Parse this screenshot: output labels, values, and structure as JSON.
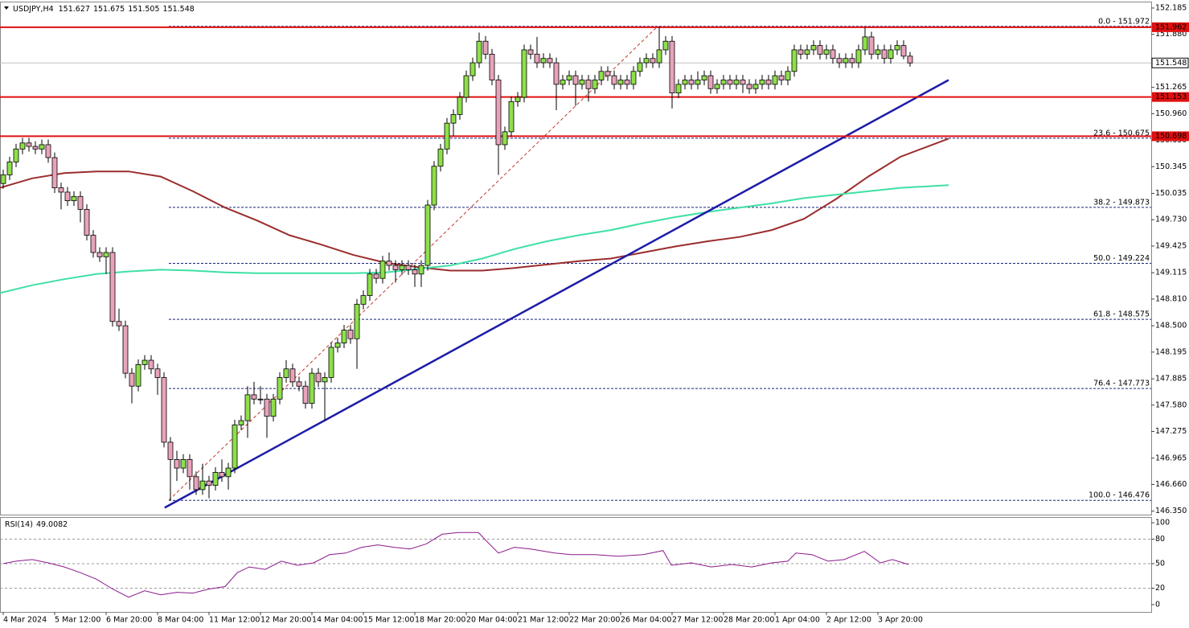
{
  "chart_data": {
    "type": "candlestick",
    "title": "USDJPY,H4",
    "ylim": [
      146.31,
      152.25
    ],
    "yticks": [
      152.185,
      {
        "value": 151.88,
        "label": "151.880"
      },
      151.265,
      {
        "value": 150.96,
        "label": "150.960"
      },
      {
        "value": 150.65,
        "label": "150.650"
      },
      150.345,
      150.035,
      {
        "value": 149.73,
        "label": "149.730"
      },
      149.425,
      149.115,
      {
        "value": 148.81,
        "label": "148.810"
      },
      {
        "value": 148.5,
        "label": "148.500"
      },
      148.195,
      147.885,
      {
        "value": 147.58,
        "label": "147.580"
      },
      147.275,
      146.965,
      {
        "value": 146.66,
        "label": "146.660"
      },
      {
        "value": 146.35,
        "label": "146.350"
      }
    ],
    "categories": [
      "4 Mar 2024",
      null,
      null,
      null,
      null,
      null,
      null,
      null,
      "5 Mar 12:00",
      null,
      null,
      null,
      null,
      null,
      null,
      null,
      "6 Mar 20:00",
      null,
      null,
      null,
      null,
      null,
      null,
      null,
      "8 Mar 04:00",
      null,
      null,
      null,
      null,
      null,
      null,
      null,
      "11 Mar 12:00",
      null,
      null,
      null,
      null,
      null,
      null,
      null,
      "12 Mar 20:00",
      null,
      null,
      null,
      null,
      null,
      null,
      null,
      "14 Mar 04:00",
      null,
      null,
      null,
      null,
      null,
      null,
      null,
      "15 Mar 12:00",
      null,
      null,
      null,
      null,
      null,
      null,
      null,
      "18 Mar 20:00",
      null,
      null,
      null,
      null,
      null,
      null,
      null,
      "20 Mar 04:00",
      null,
      null,
      null,
      null,
      null,
      null,
      null,
      "21 Mar 12:00",
      null,
      null,
      null,
      null,
      null,
      null,
      null,
      "22 Mar 20:00",
      null,
      null,
      null,
      null,
      null,
      null,
      null,
      "26 Mar 04:00",
      null,
      null,
      null,
      null,
      null,
      null,
      null,
      "27 Mar 12:00",
      null,
      null,
      null,
      null,
      null,
      null,
      null,
      "28 Mar 20:00",
      null,
      null,
      null,
      null,
      null,
      null,
      null,
      "1 Apr 04:00",
      null,
      null,
      null,
      null,
      null,
      null,
      null,
      "2 Apr 12:00",
      null,
      null,
      null,
      null,
      null,
      null,
      null,
      "3 Apr 20:00",
      null,
      null,
      null,
      null,
      null
    ],
    "up_color": "#8ee04a",
    "down_color": "#e8a3bb",
    "candles": [
      [
        150.15,
        150.31,
        150.09,
        150.25
      ],
      [
        150.25,
        150.46,
        150.19,
        150.4
      ],
      [
        150.4,
        150.61,
        150.34,
        150.55
      ],
      [
        150.55,
        150.68,
        150.49,
        150.62
      ],
      [
        150.62,
        150.68,
        150.52,
        150.58
      ],
      [
        150.58,
        150.64,
        150.49,
        150.55
      ],
      [
        150.55,
        150.66,
        150.49,
        150.6
      ],
      [
        150.6,
        150.66,
        150.39,
        150.45
      ],
      [
        150.45,
        150.51,
        150.04,
        150.1
      ],
      [
        150.1,
        150.16,
        149.85,
        150.05
      ],
      [
        150.05,
        150.11,
        149.89,
        149.95
      ],
      [
        149.95,
        150.06,
        149.89,
        150
      ],
      [
        150,
        150.06,
        149.7,
        149.85
      ],
      [
        149.85,
        149.91,
        149.49,
        149.55
      ],
      [
        149.55,
        149.61,
        149.29,
        149.35
      ],
      [
        149.35,
        149.41,
        149.24,
        149.3
      ],
      [
        149.3,
        149.41,
        149.1,
        149.35
      ],
      [
        149.35,
        149.41,
        148.49,
        148.55
      ],
      [
        148.55,
        148.7,
        148.44,
        148.5
      ],
      [
        148.5,
        148.56,
        147.89,
        147.95
      ],
      [
        147.95,
        148.01,
        147.6,
        147.8
      ],
      [
        147.8,
        148.11,
        147.74,
        148.05
      ],
      [
        148.05,
        148.16,
        147.99,
        148.1
      ],
      [
        148.1,
        148.16,
        147.94,
        148
      ],
      [
        148,
        148.06,
        147.7,
        147.9
      ],
      [
        147.9,
        147.96,
        147.09,
        147.15
      ],
      [
        147.15,
        147.21,
        146.476,
        146.95
      ],
      [
        146.95,
        147.05,
        146.7,
        146.85
      ],
      [
        146.85,
        147.01,
        146.79,
        146.95
      ],
      [
        146.95,
        147.01,
        146.6,
        146.75
      ],
      [
        146.75,
        146.81,
        146.54,
        146.6
      ],
      [
        146.6,
        146.9,
        146.54,
        146.7
      ],
      [
        146.7,
        146.76,
        146.5,
        146.65
      ],
      [
        146.65,
        146.86,
        146.59,
        146.8
      ],
      [
        146.8,
        146.95,
        146.69,
        146.75
      ],
      [
        146.75,
        146.91,
        146.6,
        146.85
      ],
      [
        146.85,
        147.41,
        146.79,
        147.35
      ],
      [
        147.35,
        147.46,
        147.29,
        147.4
      ],
      [
        147.4,
        147.8,
        147.2,
        147.7
      ],
      [
        147.7,
        147.85,
        147.59,
        147.65
      ],
      [
        147.65,
        147.8,
        147.59,
        147.65
      ],
      [
        147.65,
        147.71,
        147.2,
        147.45
      ],
      [
        147.45,
        147.71,
        147.39,
        147.65
      ],
      [
        147.65,
        147.96,
        147.59,
        147.9
      ],
      [
        147.9,
        148.1,
        147.84,
        148
      ],
      [
        148,
        148.06,
        147.79,
        147.85
      ],
      [
        147.85,
        147.91,
        147.74,
        147.8
      ],
      [
        147.8,
        147.86,
        147.54,
        147.6
      ],
      [
        147.6,
        148.01,
        147.54,
        147.95
      ],
      [
        147.95,
        148.01,
        147.79,
        147.85
      ],
      [
        147.85,
        147.96,
        147.4,
        147.9
      ],
      [
        147.9,
        148.31,
        147.84,
        148.25
      ],
      [
        148.25,
        148.36,
        148.19,
        148.3
      ],
      [
        148.3,
        148.51,
        148.24,
        148.45
      ],
      [
        148.45,
        148.51,
        148.29,
        148.35
      ],
      [
        148.35,
        148.81,
        148,
        148.75
      ],
      [
        148.75,
        148.91,
        148.69,
        148.85
      ],
      [
        148.85,
        149.16,
        148.79,
        149.1
      ],
      [
        149.1,
        149.16,
        148.99,
        149.05
      ],
      [
        149.05,
        149.31,
        148.99,
        149.25
      ],
      [
        149.25,
        149.35,
        149.14,
        149.2
      ],
      [
        149.2,
        149.26,
        149,
        149.15
      ],
      [
        149.15,
        149.26,
        149.09,
        149.2
      ],
      [
        149.2,
        149.26,
        149.09,
        149.15
      ],
      [
        149.15,
        149.21,
        148.95,
        149.1
      ],
      [
        149.1,
        149.26,
        148.95,
        149.2
      ],
      [
        149.2,
        149.96,
        149.14,
        149.9
      ],
      [
        149.9,
        150.41,
        149.84,
        150.35
      ],
      [
        150.35,
        150.61,
        150.29,
        150.55
      ],
      [
        150.55,
        150.91,
        150.49,
        150.85
      ],
      [
        150.85,
        151.01,
        150.7,
        150.95
      ],
      [
        150.95,
        151.21,
        150.89,
        151.15
      ],
      [
        151.15,
        151.46,
        151.09,
        151.4
      ],
      [
        151.4,
        151.61,
        151.34,
        151.55
      ],
      [
        151.55,
        151.9,
        151.49,
        151.8
      ],
      [
        151.8,
        151.86,
        151.59,
        151.65
      ],
      [
        151.65,
        151.71,
        151.29,
        151.35
      ],
      [
        151.35,
        151.41,
        150.25,
        150.6
      ],
      [
        150.6,
        150.81,
        150.54,
        150.75
      ],
      [
        150.75,
        151.16,
        150.69,
        151.1
      ],
      [
        151.1,
        151.21,
        151.04,
        151.15
      ],
      [
        151.15,
        151.76,
        151.09,
        151.7
      ],
      [
        151.7,
        151.76,
        151.59,
        151.65
      ],
      [
        151.65,
        151.85,
        151.49,
        151.55
      ],
      [
        151.55,
        151.66,
        151.49,
        151.6
      ],
      [
        151.6,
        151.66,
        151.49,
        151.55
      ],
      [
        151.55,
        151.61,
        151,
        151.3
      ],
      [
        151.3,
        151.41,
        151.24,
        151.35
      ],
      [
        151.35,
        151.46,
        151.29,
        151.4
      ],
      [
        151.4,
        151.46,
        151.05,
        151.3
      ],
      [
        151.3,
        151.41,
        151.24,
        151.35
      ],
      [
        151.35,
        151.41,
        151.1,
        151.25
      ],
      [
        151.25,
        151.41,
        151.19,
        151.35
      ],
      [
        151.35,
        151.51,
        151.29,
        151.45
      ],
      [
        151.45,
        151.51,
        151.34,
        151.4
      ],
      [
        151.4,
        151.46,
        151.24,
        151.3
      ],
      [
        151.3,
        151.41,
        151.24,
        151.35
      ],
      [
        151.35,
        151.41,
        151.24,
        151.3
      ],
      [
        151.3,
        151.51,
        151.24,
        151.45
      ],
      [
        151.45,
        151.61,
        151.39,
        151.55
      ],
      [
        151.55,
        151.66,
        151.49,
        151.6
      ],
      [
        151.6,
        151.66,
        151.49,
        151.55
      ],
      [
        151.55,
        151.972,
        151.49,
        151.7
      ],
      [
        151.7,
        151.86,
        151.64,
        151.8
      ],
      [
        151.8,
        151.86,
        151.02,
        151.2
      ],
      [
        151.2,
        151.36,
        151.14,
        151.3
      ],
      [
        151.3,
        151.41,
        151.24,
        151.35
      ],
      [
        151.35,
        151.41,
        151.24,
        151.3
      ],
      [
        151.3,
        151.45,
        151.24,
        151.35
      ],
      [
        151.35,
        151.46,
        151.29,
        151.4
      ],
      [
        151.4,
        151.46,
        151.19,
        151.25
      ],
      [
        151.25,
        151.36,
        151.19,
        151.3
      ],
      [
        151.3,
        151.41,
        151.24,
        151.35
      ],
      [
        151.35,
        151.41,
        151.24,
        151.3
      ],
      [
        151.3,
        151.41,
        151.24,
        151.35
      ],
      [
        151.35,
        151.41,
        151.2,
        151.3
      ],
      [
        151.3,
        151.36,
        151.19,
        151.25
      ],
      [
        151.25,
        151.36,
        151.19,
        151.3
      ],
      [
        151.3,
        151.41,
        151.24,
        151.35
      ],
      [
        151.35,
        151.41,
        151.24,
        151.3
      ],
      [
        151.3,
        151.46,
        151.24,
        151.4
      ],
      [
        151.4,
        151.46,
        151.29,
        151.35
      ],
      [
        151.35,
        151.51,
        151.29,
        151.45
      ],
      [
        151.45,
        151.76,
        151.39,
        151.7
      ],
      [
        151.7,
        151.76,
        151.59,
        151.65
      ],
      [
        151.65,
        151.76,
        151.59,
        151.7
      ],
      [
        151.7,
        151.81,
        151.64,
        151.75
      ],
      [
        151.75,
        151.81,
        151.59,
        151.65
      ],
      [
        151.65,
        151.76,
        151.59,
        151.7
      ],
      [
        151.7,
        151.76,
        151.54,
        151.6
      ],
      [
        151.6,
        151.66,
        151.49,
        151.55
      ],
      [
        151.55,
        151.66,
        151.49,
        151.6
      ],
      [
        151.6,
        151.66,
        151.49,
        151.55
      ],
      [
        151.55,
        151.76,
        151.49,
        151.7
      ],
      [
        151.7,
        151.96,
        151.64,
        151.85
      ],
      [
        151.85,
        151.91,
        151.59,
        151.65
      ],
      [
        151.65,
        151.76,
        151.59,
        151.7
      ],
      [
        151.7,
        151.76,
        151.54,
        151.6
      ],
      [
        151.6,
        151.76,
        151.54,
        151.7
      ],
      [
        151.7,
        151.81,
        151.64,
        151.75
      ],
      [
        151.75,
        151.81,
        151.59,
        151.627
      ],
      [
        151.627,
        151.675,
        151.505,
        151.548
      ]
    ],
    "price_lines": [
      {
        "value": 151.962,
        "color": "#e01010"
      },
      {
        "value": 151.153,
        "color": "#e01010"
      },
      {
        "value": 150.698,
        "color": "#e01010"
      }
    ],
    "fib_color": "#1a237e",
    "fib_levels": [
      {
        "value": 151.972,
        "label": "0.0 - 151.972"
      },
      {
        "value": 150.675,
        "label": "23.6 - 150.675"
      },
      {
        "value": 149.873,
        "label": "38.2 - 149.873"
      },
      {
        "value": 149.224,
        "label": "50.0 - 149.224"
      },
      {
        "value": 148.575,
        "label": "61.8 - 148.575"
      },
      {
        "value": 147.773,
        "label": "76.4 - 147.773"
      },
      {
        "value": 146.476,
        "label": "100.0 - 146.476"
      }
    ],
    "fib_line": {
      "color": "#c0392b",
      "x": [
        25.75,
        101.75
      ],
      "values": [
        146.476,
        151.972
      ]
    },
    "trendline": {
      "color": "#1c1ca8",
      "x": [
        25.1,
        147
      ],
      "values": [
        146.39,
        151.35
      ]
    },
    "moving_averages": [
      {
        "color": "#9b2d2d",
        "x": [
          -0.5,
          4.5,
          9.5,
          14.5,
          19.5,
          24.5,
          29.5,
          34.5,
          39.5,
          44.5,
          49.5,
          54.5,
          59.5,
          64.5,
          69.5,
          74.5,
          79.5,
          84.5,
          89.5,
          94.5,
          99.5,
          104.5,
          109.5,
          114.5,
          119.5,
          124.5,
          129.5,
          134.5,
          139.5,
          147
        ],
        "values": [
          150.1,
          150.21,
          150.27,
          150.29,
          150.29,
          150.23,
          150.06,
          149.87,
          149.72,
          149.55,
          149.44,
          149.32,
          149.23,
          149.18,
          149.14,
          149.14,
          149.17,
          149.21,
          149.25,
          149.28,
          149.35,
          149.42,
          149.48,
          149.53,
          149.61,
          149.74,
          149.97,
          150.23,
          150.46,
          150.67
        ]
      },
      {
        "color": "#3ee0a4",
        "x": [
          -0.5,
          4.5,
          9.5,
          14.5,
          19.5,
          24.5,
          29.5,
          34.5,
          39.5,
          44.5,
          49.5,
          54.5,
          59.5,
          64.5,
          69.5,
          74.5,
          79.5,
          84.5,
          89.5,
          94.5,
          99.5,
          104.5,
          109.5,
          114.5,
          119.5,
          124.5,
          129.5,
          134.5,
          139.5,
          147
        ],
        "values": [
          148.88,
          148.97,
          149.04,
          149.1,
          149.13,
          149.15,
          149.14,
          149.12,
          149.11,
          149.11,
          149.11,
          149.11,
          149.12,
          149.16,
          149.2,
          149.28,
          149.39,
          149.48,
          149.55,
          149.61,
          149.69,
          149.76,
          149.82,
          149.87,
          149.92,
          149.98,
          150.02,
          150.06,
          150.1,
          150.13
        ]
      }
    ],
    "indicator": {
      "title": "RSI(14)",
      "color": "#8b1a8b",
      "ylim": [
        -8,
        107
      ],
      "yticks": [
        100,
        80,
        50,
        20,
        0
      ],
      "levels": [
        80,
        50,
        20
      ],
      "x": [
        0,
        2,
        4.5,
        7,
        9.5,
        12,
        14.5,
        17,
        19.5,
        22,
        24.5,
        27,
        29.5,
        32,
        34.5,
        36.4,
        38.25,
        40.75,
        43.25,
        45.75,
        48.25,
        50.75,
        53.25,
        55.75,
        58.25,
        60.75,
        63.25,
        65.75,
        68.25,
        70.75,
        73.9,
        75.1,
        77,
        79.5,
        82,
        85.75,
        88.25,
        92,
        95.75,
        99.5,
        102.6,
        103.9,
        107,
        110.1,
        113.25,
        116.4,
        119.5,
        122,
        123.25,
        125.75,
        128.25,
        130.75,
        133.9,
        136.4,
        138.25,
        140.75
      ],
      "values": [
        50,
        53,
        55,
        51,
        46,
        39,
        31,
        19,
        9,
        17,
        12,
        15,
        14,
        19,
        22,
        39,
        46,
        43,
        53,
        48,
        51,
        61,
        63,
        70,
        73,
        70,
        68,
        74,
        86,
        88,
        88,
        78,
        63,
        70,
        68,
        63,
        61,
        61,
        59,
        61,
        66,
        48,
        51,
        46,
        49,
        46,
        51,
        53,
        63,
        61,
        53,
        55,
        65,
        51,
        55,
        49.0082
      ]
    }
  }
}
